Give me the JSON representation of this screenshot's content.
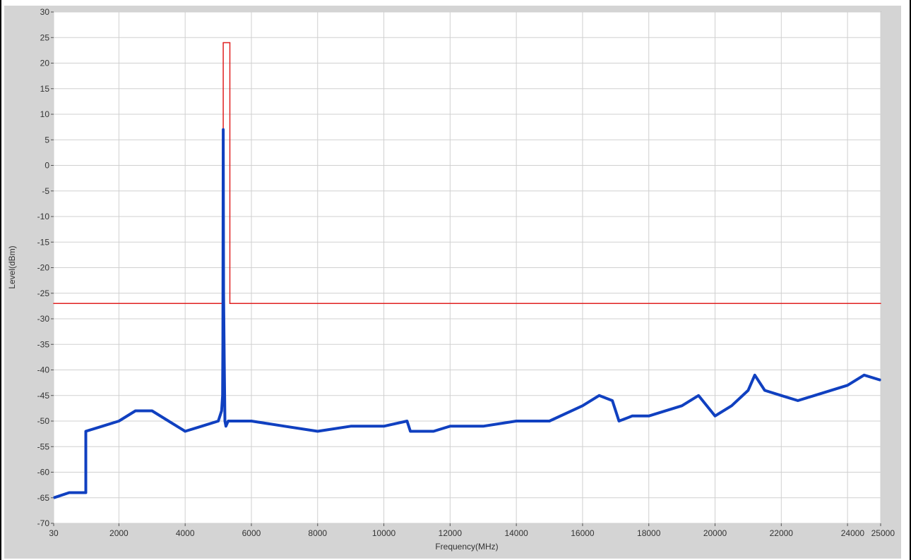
{
  "chart_data": {
    "type": "line",
    "title": "",
    "xlabel": "Frequency(MHz)",
    "ylabel": "Level(dBm)",
    "xlim": [
      30,
      25000
    ],
    "ylim": [
      -70,
      30
    ],
    "grid": true,
    "x_scale": "linear",
    "x_tick_values": [
      30,
      2000,
      4000,
      6000,
      8000,
      10000,
      12000,
      14000,
      16000,
      18000,
      20000,
      22000,
      24000,
      25000
    ],
    "x_tick_labels": [
      "30",
      "2000",
      "4000",
      "6000",
      "8000",
      "10000",
      "12000",
      "14000",
      "16000",
      "18000",
      "20000",
      "22000",
      "24000",
      "25000"
    ],
    "y_tick_values": [
      30,
      25,
      20,
      15,
      10,
      5,
      0,
      -5,
      -10,
      -15,
      -20,
      -25,
      -30,
      -35,
      -40,
      -45,
      -50,
      -55,
      -60,
      -65,
      -70
    ],
    "y_tick_labels": [
      "30",
      "25",
      "20",
      "15",
      "10",
      "5",
      "0",
      "-5",
      "-10",
      "-15",
      "-20",
      "-25",
      "-30",
      "-35",
      "-40",
      "-45",
      "-50",
      "-55",
      "-60",
      "-65",
      "-70"
    ],
    "series": [
      {
        "color": "#e02020",
        "x": [
          30,
          5150,
          5150,
          5350,
          5350,
          25000
        ],
        "y": [
          -27,
          -27,
          24,
          24,
          -27,
          -27
        ]
      },
      {
        "color": "#1040c0",
        "x": [
          30,
          500,
          1000,
          1000,
          1500,
          2000,
          2500,
          3000,
          3500,
          4000,
          4500,
          5000,
          5100,
          5130,
          5140,
          5150,
          5160,
          5180,
          5200,
          5230,
          5300,
          6000,
          7000,
          8000,
          9000,
          10000,
          10700,
          10800,
          11500,
          12000,
          13000,
          14000,
          15000,
          16000,
          16500,
          16900,
          17100,
          17500,
          18000,
          19000,
          19500,
          20000,
          20500,
          21000,
          21200,
          21500,
          22000,
          22500,
          23000,
          24000,
          24500,
          25000
        ],
        "y": [
          -65,
          -64,
          -64,
          -52,
          -51,
          -50,
          -48,
          -48,
          -50,
          -52,
          -51,
          -50,
          -48,
          -45,
          -35,
          7,
          -25,
          -38,
          -50,
          -51,
          -50,
          -50,
          -51,
          -52,
          -51,
          -51,
          -50,
          -52,
          -52,
          -51,
          -51,
          -50,
          -50,
          -47,
          -45,
          -46,
          -50,
          -49,
          -49,
          -47,
          -45,
          -49,
          -47,
          -44,
          -41,
          -44,
          -45,
          -46,
          -45,
          -43,
          -41,
          -42
        ]
      }
    ]
  }
}
